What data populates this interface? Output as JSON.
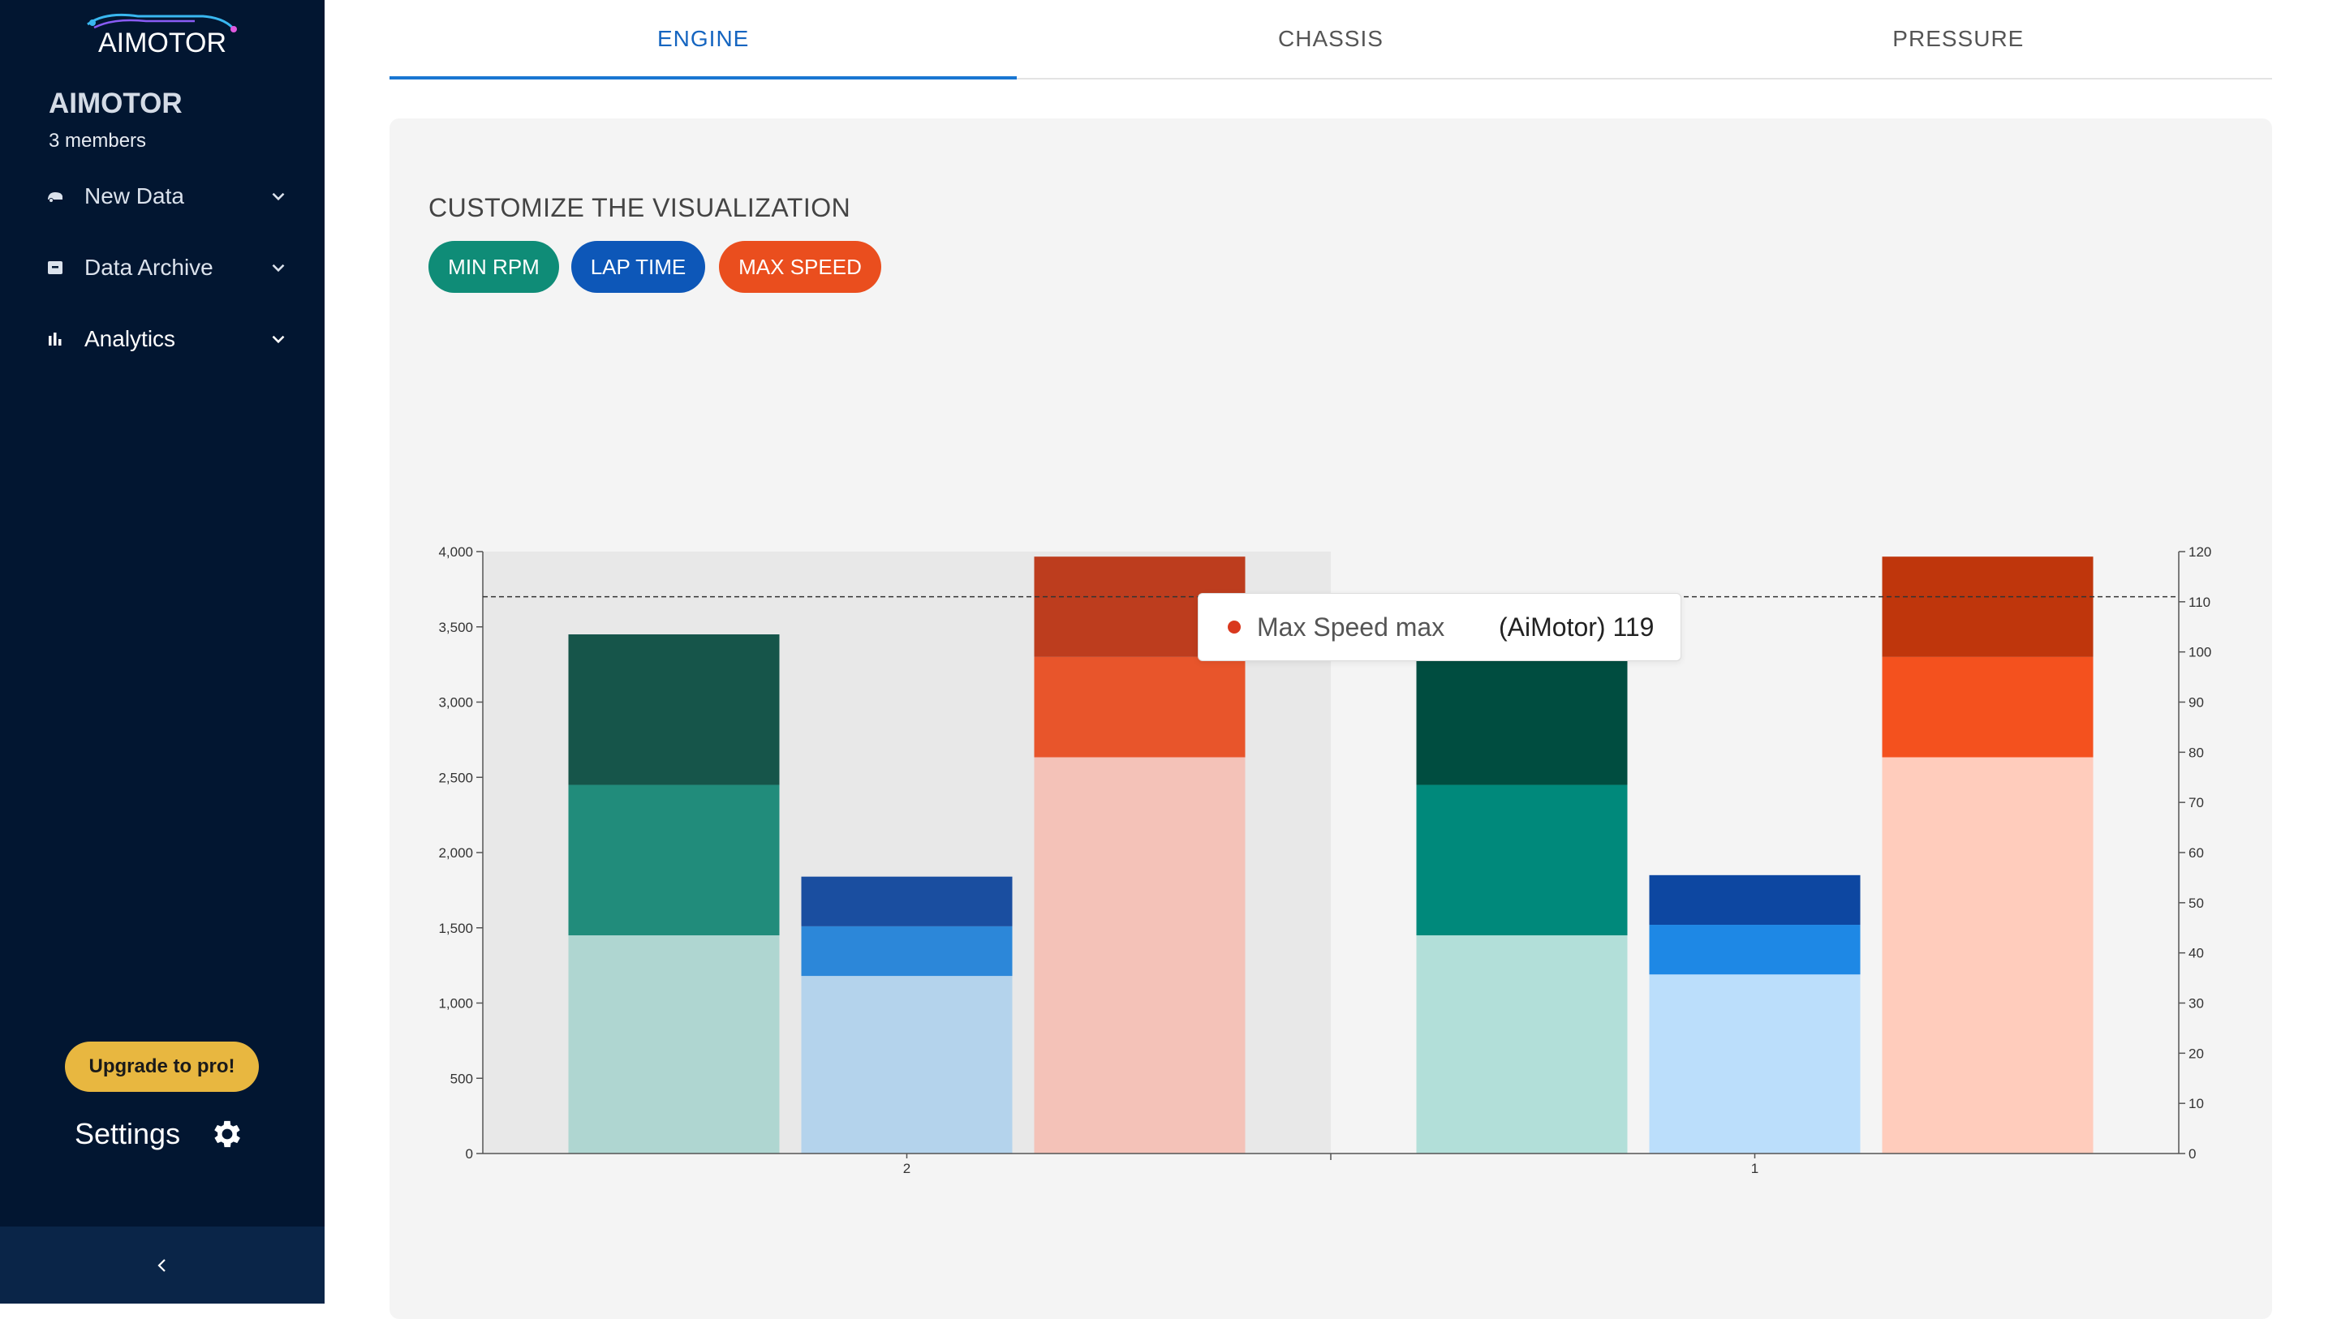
{
  "sidebar": {
    "logo_text": "AIMOTOR",
    "team_name": "AIMOTOR",
    "team_members": "3 members",
    "nav": [
      {
        "label": "New Data",
        "icon": "car-icon"
      },
      {
        "label": "Data Archive",
        "icon": "archive-icon"
      },
      {
        "label": "Analytics",
        "icon": "bar-chart-icon"
      }
    ],
    "upgrade_label": "Upgrade to pro!",
    "settings_label": "Settings"
  },
  "tabs": [
    {
      "label": "ENGINE",
      "active": true
    },
    {
      "label": "CHASSIS",
      "active": false
    },
    {
      "label": "PRESSURE",
      "active": false
    }
  ],
  "customize": {
    "title": "CUSTOMIZE THE VISUALIZATION",
    "chips": [
      {
        "label": "MIN RPM",
        "color": "#0f8c77"
      },
      {
        "label": "LAP TIME",
        "color": "#0d57b8"
      },
      {
        "label": "MAX SPEED",
        "color": "#ea4e1e"
      }
    ]
  },
  "tooltip": {
    "label": "Max Speed max",
    "value": "(AiMotor) 119",
    "color": "#d9381e"
  },
  "chart_data": {
    "type": "bar",
    "categories": [
      "2",
      "1"
    ],
    "left_axis": {
      "ylim": [
        0,
        4000
      ],
      "ticks": [
        "0",
        "500",
        "1,000",
        "1,500",
        "2,000",
        "2,500",
        "3,000",
        "3,500",
        "4,000"
      ]
    },
    "right_axis": {
      "ylim": [
        0,
        120
      ],
      "ticks": [
        "0",
        "10",
        "20",
        "30",
        "40",
        "50",
        "60",
        "70",
        "80",
        "90",
        "100",
        "110",
        "120"
      ]
    },
    "reference_line_right": 111,
    "highlighted_category": "2",
    "groups": [
      {
        "category": "2",
        "stacks": [
          {
            "name": "MIN RPM",
            "axis": "left",
            "segments": [
              1450,
              1000,
              1000
            ],
            "colors": [
              "#afd6d1",
              "#218c7b",
              "#16554a"
            ]
          },
          {
            "name": "LAP TIME",
            "axis": "left",
            "segments": [
              1180,
              330,
              330
            ],
            "colors": [
              "#b4d3ec",
              "#2c87d9",
              "#1a4ea0"
            ]
          },
          {
            "name": "MAX SPEED",
            "axis": "right",
            "segments": [
              79,
              20,
              20
            ],
            "colors": [
              "#f4c2b8",
              "#e8552b",
              "#bd3d1e"
            ]
          }
        ]
      },
      {
        "category": "1",
        "stacks": [
          {
            "name": "MIN RPM",
            "axis": "left",
            "segments": [
              1450,
              1000,
              1000
            ],
            "colors": [
              "#b2dfd9",
              "#00897b",
              "#004d40"
            ]
          },
          {
            "name": "LAP TIME",
            "axis": "left",
            "segments": [
              1190,
              330,
              330
            ],
            "colors": [
              "#bbdefb",
              "#1e88e5",
              "#0d47a1"
            ]
          },
          {
            "name": "MAX SPEED",
            "axis": "right",
            "segments": [
              79,
              20,
              20
            ],
            "colors": [
              "#ffccbc",
              "#f4511e",
              "#bf360c"
            ]
          }
        ]
      }
    ]
  }
}
